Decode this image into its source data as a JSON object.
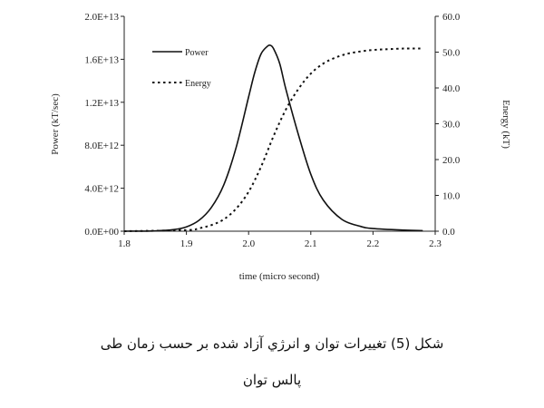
{
  "chart_data": {
    "type": "line",
    "title": "",
    "xlabel": "time (micro second)",
    "ylabel_left": "Power (kT/sec)",
    "ylabel_right": "Energy (kT)",
    "xlim": [
      1.8,
      2.3
    ],
    "x_ticks": [
      "1.8",
      "1.9",
      "2.0",
      "2.1",
      "2.2",
      "2.3"
    ],
    "ylim_left": [
      0,
      20000000000000.0
    ],
    "y_ticks_left": [
      "0.0E+00",
      "4.0E+12",
      "8.0E+12",
      "1.2E+13",
      "1.6E+13",
      "2.0E+13"
    ],
    "ylim_right": [
      0,
      60
    ],
    "y_ticks_right": [
      "0.0",
      "10.0",
      "20.0",
      "30.0",
      "40.0",
      "50.0",
      "60.0"
    ],
    "grid": false,
    "legend_position": "top-left",
    "series": [
      {
        "name": "Power",
        "axis": "left",
        "style": "solid",
        "x": [
          1.8,
          1.85,
          1.88,
          1.9,
          1.92,
          1.94,
          1.96,
          1.98,
          2.0,
          2.01,
          2.02,
          2.03,
          2.035,
          2.04,
          2.05,
          2.06,
          2.08,
          2.1,
          2.12,
          2.15,
          2.18,
          2.2,
          2.25,
          2.28
        ],
        "values": [
          0,
          30000000000.0,
          150000000000.0,
          400000000000.0,
          1000000000000.0,
          2200000000000.0,
          4300000000000.0,
          7800000000000.0,
          12500000000000.0,
          14800000000000.0,
          16500000000000.0,
          17200000000000.0,
          17300000000000.0,
          17000000000000.0,
          15600000000000.0,
          13200000000000.0,
          9000000000000.0,
          5300000000000.0,
          2900000000000.0,
          1100000000000.0,
          450000000000.0,
          250000000000.0,
          100000000000.0,
          50000000000.0
        ]
      },
      {
        "name": "Energy",
        "axis": "right",
        "style": "dotted",
        "x": [
          1.8,
          1.9,
          1.92,
          1.94,
          1.96,
          1.98,
          2.0,
          2.02,
          2.04,
          2.06,
          2.08,
          2.1,
          2.12,
          2.14,
          2.16,
          2.18,
          2.2,
          2.22,
          2.25,
          2.28
        ],
        "values": [
          0,
          0.3,
          0.8,
          1.7,
          3.3,
          6.3,
          11.0,
          18.0,
          26.5,
          34.0,
          39.7,
          44.0,
          46.8,
          48.5,
          49.6,
          50.2,
          50.6,
          50.8,
          51.0,
          51.0
        ]
      }
    ]
  },
  "caption": {
    "line1": "شكل (5) تغييرات توان و انرژي آزاد شده بر حسب زمان طی",
    "line2": "پالس توان"
  }
}
